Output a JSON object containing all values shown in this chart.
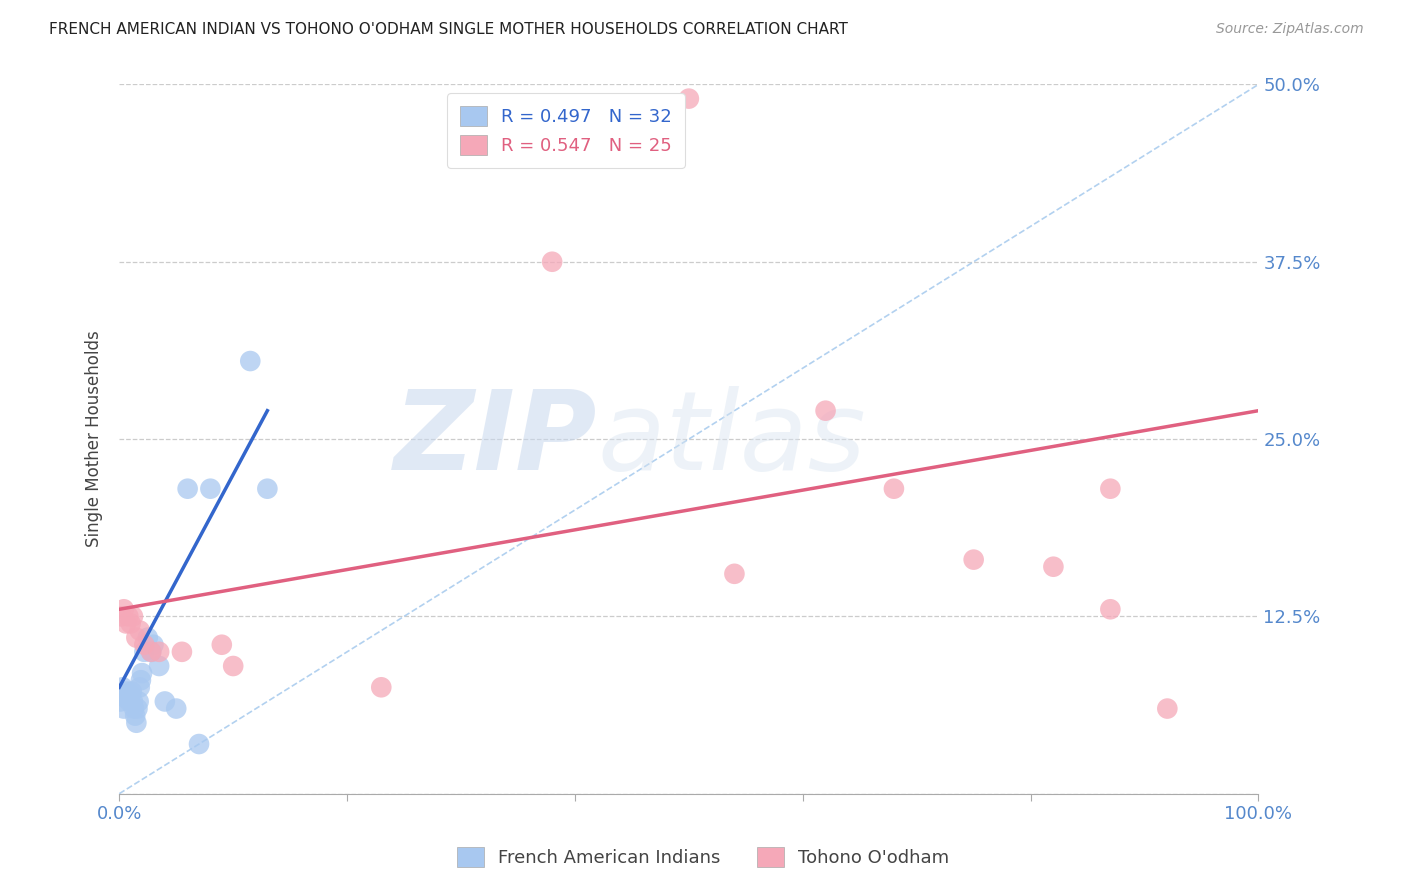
{
  "title": "FRENCH AMERICAN INDIAN VS TOHONO O'ODHAM SINGLE MOTHER HOUSEHOLDS CORRELATION CHART",
  "source": "Source: ZipAtlas.com",
  "ylabel": "Single Mother Households",
  "watermark_zip": "ZIP",
  "watermark_atlas": "atlas",
  "blue_label": "French American Indians",
  "pink_label": "Tohono O'odham",
  "blue_r": "0.497",
  "blue_n": "32",
  "pink_r": "0.547",
  "pink_n": "25",
  "xlim": [
    0.0,
    1.0
  ],
  "ylim": [
    0.0,
    0.5
  ],
  "yticks": [
    0.0,
    0.125,
    0.25,
    0.375,
    0.5
  ],
  "ytick_labels": [
    "",
    "12.5%",
    "25.0%",
    "37.5%",
    "50.0%"
  ],
  "grid_color": "#cccccc",
  "blue_color": "#a8c8f0",
  "pink_color": "#f5a8b8",
  "blue_line_color": "#3366cc",
  "pink_line_color": "#e06080",
  "diagonal_color": "#aaccee",
  "background_color": "#ffffff",
  "blue_points_x": [
    0.001,
    0.002,
    0.003,
    0.004,
    0.005,
    0.006,
    0.007,
    0.008,
    0.009,
    0.01,
    0.011,
    0.012,
    0.013,
    0.014,
    0.015,
    0.016,
    0.017,
    0.018,
    0.019,
    0.02,
    0.022,
    0.025,
    0.028,
    0.03,
    0.035,
    0.04,
    0.05,
    0.06,
    0.07,
    0.08,
    0.115,
    0.13
  ],
  "blue_points_y": [
    0.065,
    0.07,
    0.075,
    0.06,
    0.068,
    0.07,
    0.072,
    0.068,
    0.065,
    0.07,
    0.072,
    0.065,
    0.06,
    0.055,
    0.05,
    0.06,
    0.065,
    0.075,
    0.08,
    0.085,
    0.1,
    0.11,
    0.1,
    0.105,
    0.09,
    0.065,
    0.06,
    0.215,
    0.035,
    0.215,
    0.305,
    0.215
  ],
  "pink_points_x": [
    0.002,
    0.004,
    0.006,
    0.008,
    0.01,
    0.012,
    0.015,
    0.018,
    0.022,
    0.028,
    0.035,
    0.055,
    0.09,
    0.1,
    0.23,
    0.38,
    0.5,
    0.54,
    0.62,
    0.68,
    0.75,
    0.82,
    0.87,
    0.87,
    0.92
  ],
  "pink_points_y": [
    0.125,
    0.13,
    0.12,
    0.125,
    0.12,
    0.125,
    0.11,
    0.115,
    0.105,
    0.1,
    0.1,
    0.1,
    0.105,
    0.09,
    0.075,
    0.375,
    0.49,
    0.155,
    0.27,
    0.215,
    0.165,
    0.16,
    0.215,
    0.13,
    0.06
  ],
  "blue_line_x": [
    0.0,
    0.13
  ],
  "blue_line_y": [
    0.075,
    0.27
  ],
  "pink_line_x": [
    0.0,
    1.0
  ],
  "pink_line_y": [
    0.13,
    0.27
  ],
  "diag_line_x": [
    0.0,
    1.0
  ],
  "diag_line_y": [
    0.0,
    0.5
  ]
}
